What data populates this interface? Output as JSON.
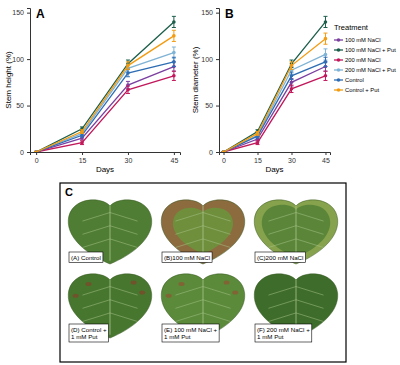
{
  "chart_data": [
    {
      "type": "line",
      "title": "A",
      "x_label": "Days",
      "y_label": "Stem height (%)",
      "x": [
        0,
        15,
        30,
        45
      ],
      "xlim": [
        -2,
        47
      ],
      "xticks": [
        0,
        15,
        30,
        45
      ],
      "ylim": [
        0,
        155
      ],
      "yticks": [
        0,
        50,
        100,
        150
      ],
      "grid": false,
      "marker": "circle",
      "series": [
        {
          "color": "#7b3fa0",
          "values": [
            0,
            15,
            72,
            92
          ],
          "errors": [
            0,
            2,
            4,
            5
          ]
        },
        {
          "color": "#1b5e4a",
          "values": [
            0,
            25,
            95,
            140
          ],
          "errors": [
            0,
            2,
            4,
            6
          ]
        },
        {
          "color": "#c2185b",
          "values": [
            0,
            10,
            67,
            82
          ],
          "errors": [
            0,
            2,
            4,
            5
          ]
        },
        {
          "color": "#7fb3d5",
          "values": [
            0,
            20,
            90,
            107
          ],
          "errors": [
            0,
            2,
            4,
            6
          ]
        },
        {
          "color": "#2e6db4",
          "values": [
            0,
            18,
            85,
            97
          ],
          "errors": [
            0,
            2,
            4,
            5
          ]
        },
        {
          "color": "#f39c12",
          "values": [
            0,
            22,
            93,
            125
          ],
          "errors": [
            0,
            2,
            4,
            6
          ]
        }
      ]
    },
    {
      "type": "line",
      "title": "B",
      "x_label": "Days",
      "y_label": "Stem diameter (%)",
      "x": [
        0,
        15,
        30,
        45
      ],
      "xlim": [
        -2,
        47
      ],
      "xticks": [
        0,
        15,
        30,
        45
      ],
      "ylim": [
        0,
        155
      ],
      "yticks": [
        0,
        50,
        100,
        150
      ],
      "grid": false,
      "marker": "circle",
      "legend": "right",
      "legend_title": "Treatment",
      "series": [
        {
          "name": "100 mM NaCl",
          "color": "#7b3fa0",
          "values": [
            0,
            14,
            75,
            92
          ],
          "errors": [
            0,
            2,
            4,
            5
          ]
        },
        {
          "name": "100 mM NaCl + Put",
          "color": "#1b5e4a",
          "values": [
            0,
            22,
            95,
            140
          ],
          "errors": [
            0,
            2,
            4,
            6
          ]
        },
        {
          "name": "200 mM NaCl",
          "color": "#c2185b",
          "values": [
            0,
            10,
            68,
            82
          ],
          "errors": [
            0,
            2,
            4,
            5
          ]
        },
        {
          "name": "200 mM NaCl + Put",
          "color": "#7fb3d5",
          "values": [
            0,
            18,
            88,
            105
          ],
          "errors": [
            0,
            2,
            4,
            6
          ]
        },
        {
          "name": "Control",
          "color": "#2e6db4",
          "values": [
            0,
            17,
            82,
            97
          ],
          "errors": [
            0,
            2,
            4,
            5
          ]
        },
        {
          "name": "Control + Put",
          "color": "#f39c12",
          "values": [
            0,
            20,
            93,
            122
          ],
          "errors": [
            0,
            2,
            4,
            6
          ]
        }
      ]
    }
  ],
  "photo_panel": {
    "label": "C",
    "images": [
      {
        "caption": [
          "(A) Control"
        ]
      },
      {
        "caption": [
          "(B)100 mM NaCl"
        ]
      },
      {
        "caption": [
          "(C)200 mM NaCl"
        ]
      },
      {
        "caption": [
          "(D) Control +",
          "1 mM Put"
        ]
      },
      {
        "caption": [
          "(E) 100 mM NaCl +",
          "1 mM Put"
        ]
      },
      {
        "caption": [
          "(F) 200 mM NaCl +",
          "1 mM Put"
        ]
      }
    ]
  }
}
